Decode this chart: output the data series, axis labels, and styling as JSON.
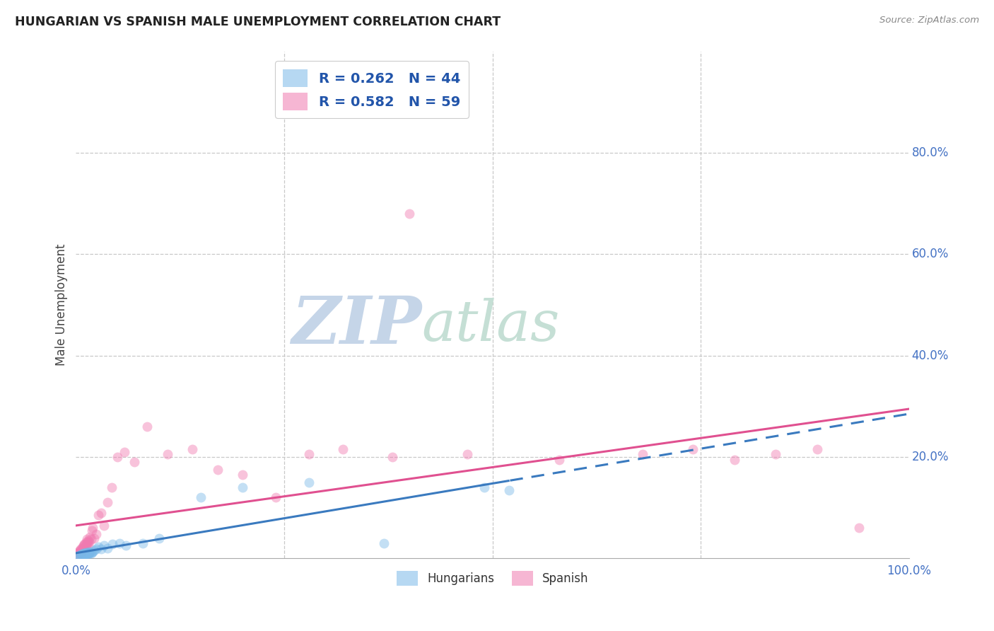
{
  "title": "HUNGARIAN VS SPANISH MALE UNEMPLOYMENT CORRELATION CHART",
  "source": "Source: ZipAtlas.com",
  "ylabel": "Male Unemployment",
  "xlim": [
    0.0,
    1.0
  ],
  "ylim": [
    0.0,
    1.0
  ],
  "hungarian_R": 0.262,
  "hungarian_N": 44,
  "spanish_R": 0.582,
  "spanish_N": 59,
  "hungarian_color": "#7ab8e8",
  "spanish_color": "#f07ab0",
  "hungarian_line_color": "#3a7abf",
  "spanish_line_color": "#e05090",
  "background_color": "#ffffff",
  "grid_color": "#c8c8c8",
  "ytick_positions": [
    0.2,
    0.4,
    0.6,
    0.8
  ],
  "ytick_labels": [
    "20.0%",
    "40.0%",
    "60.0%",
    "80.0%"
  ],
  "xtick_positions": [
    0.0,
    1.0
  ],
  "xtick_labels": [
    "0.0%",
    "100.0%"
  ],
  "hun_line_solid_end": 0.52,
  "hun_line_start": 0.0,
  "hun_line_end": 1.0,
  "spa_line_start": 0.0,
  "spa_line_end": 1.0,
  "hungarian_x": [
    0.003,
    0.004,
    0.005,
    0.006,
    0.007,
    0.007,
    0.008,
    0.008,
    0.009,
    0.009,
    0.01,
    0.01,
    0.011,
    0.011,
    0.012,
    0.012,
    0.013,
    0.013,
    0.014,
    0.015,
    0.015,
    0.016,
    0.016,
    0.017,
    0.018,
    0.019,
    0.02,
    0.022,
    0.024,
    0.027,
    0.03,
    0.034,
    0.038,
    0.044,
    0.052,
    0.06,
    0.08,
    0.1,
    0.15,
    0.2,
    0.28,
    0.37,
    0.49,
    0.52
  ],
  "hungarian_y": [
    0.005,
    0.006,
    0.005,
    0.007,
    0.006,
    0.008,
    0.006,
    0.009,
    0.007,
    0.01,
    0.007,
    0.01,
    0.008,
    0.01,
    0.009,
    0.012,
    0.008,
    0.011,
    0.01,
    0.009,
    0.012,
    0.01,
    0.013,
    0.011,
    0.01,
    0.012,
    0.013,
    0.015,
    0.018,
    0.022,
    0.018,
    0.025,
    0.02,
    0.028,
    0.03,
    0.025,
    0.03,
    0.04,
    0.12,
    0.14,
    0.15,
    0.03,
    0.14,
    0.135
  ],
  "spanish_x": [
    0.002,
    0.003,
    0.003,
    0.004,
    0.004,
    0.005,
    0.005,
    0.006,
    0.006,
    0.007,
    0.007,
    0.008,
    0.008,
    0.009,
    0.009,
    0.01,
    0.01,
    0.011,
    0.011,
    0.012,
    0.012,
    0.013,
    0.013,
    0.014,
    0.015,
    0.015,
    0.016,
    0.017,
    0.018,
    0.019,
    0.02,
    0.022,
    0.024,
    0.027,
    0.03,
    0.034,
    0.038,
    0.043,
    0.05,
    0.058,
    0.4,
    0.07,
    0.085,
    0.11,
    0.14,
    0.17,
    0.2,
    0.24,
    0.28,
    0.32,
    0.38,
    0.47,
    0.58,
    0.68,
    0.74,
    0.79,
    0.84,
    0.89,
    0.94
  ],
  "spanish_y": [
    0.008,
    0.01,
    0.012,
    0.01,
    0.014,
    0.012,
    0.016,
    0.012,
    0.018,
    0.014,
    0.02,
    0.015,
    0.022,
    0.018,
    0.025,
    0.018,
    0.028,
    0.022,
    0.028,
    0.025,
    0.032,
    0.028,
    0.038,
    0.032,
    0.025,
    0.035,
    0.032,
    0.042,
    0.038,
    0.055,
    0.06,
    0.04,
    0.048,
    0.085,
    0.09,
    0.065,
    0.11,
    0.14,
    0.2,
    0.21,
    0.68,
    0.19,
    0.26,
    0.205,
    0.215,
    0.175,
    0.165,
    0.12,
    0.205,
    0.215,
    0.2,
    0.205,
    0.195,
    0.205,
    0.215,
    0.195,
    0.205,
    0.215,
    0.06
  ]
}
